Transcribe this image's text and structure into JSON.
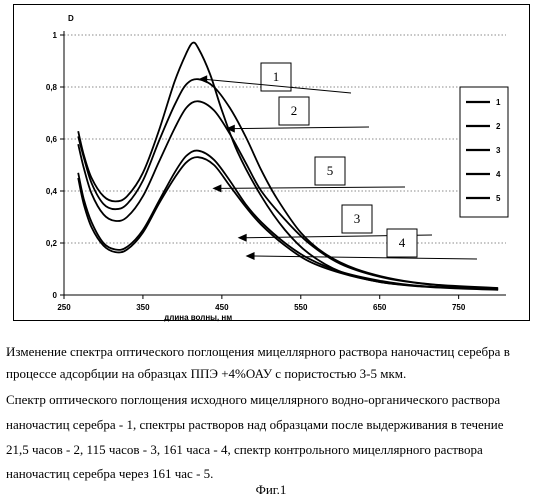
{
  "chart_data": {
    "type": "line",
    "ylabel": "D",
    "xlabel": "длина волны, нм",
    "xlim": [
      250,
      810
    ],
    "ylim": [
      0,
      1.0
    ],
    "x_ticks": [
      250,
      350,
      450,
      550,
      650,
      750
    ],
    "x_tick_labels": [
      "250",
      "350",
      "450",
      "550",
      "650",
      "750"
    ],
    "y_ticks": [
      0,
      0.2,
      0.4,
      0.6,
      0.8,
      1.0
    ],
    "y_tick_labels": [
      "0",
      "0,2",
      "0,4",
      "0,6",
      "0,8",
      "1"
    ],
    "grid": "horizontal dashed",
    "legend_position": "right",
    "series": [
      {
        "name": "1",
        "points": [
          [
            268,
            0.63
          ],
          [
            275,
            0.54
          ],
          [
            285,
            0.45
          ],
          [
            300,
            0.38
          ],
          [
            315,
            0.36
          ],
          [
            330,
            0.38
          ],
          [
            350,
            0.47
          ],
          [
            370,
            0.63
          ],
          [
            390,
            0.82
          ],
          [
            405,
            0.93
          ],
          [
            413,
            0.97
          ],
          [
            420,
            0.95
          ],
          [
            435,
            0.85
          ],
          [
            450,
            0.71
          ],
          [
            470,
            0.55
          ],
          [
            500,
            0.38
          ],
          [
            530,
            0.25
          ],
          [
            560,
            0.16
          ],
          [
            600,
            0.09
          ],
          [
            650,
            0.05
          ],
          [
            700,
            0.035
          ],
          [
            750,
            0.027
          ],
          [
            800,
            0.022
          ]
        ]
      },
      {
        "name": "2",
        "points": [
          [
            268,
            0.61
          ],
          [
            275,
            0.53
          ],
          [
            285,
            0.43
          ],
          [
            300,
            0.35
          ],
          [
            315,
            0.33
          ],
          [
            330,
            0.35
          ],
          [
            350,
            0.44
          ],
          [
            370,
            0.59
          ],
          [
            390,
            0.73
          ],
          [
            405,
            0.81
          ],
          [
            420,
            0.83
          ],
          [
            440,
            0.8
          ],
          [
            460,
            0.72
          ],
          [
            480,
            0.61
          ],
          [
            500,
            0.48
          ],
          [
            520,
            0.37
          ],
          [
            550,
            0.24
          ],
          [
            580,
            0.16
          ],
          [
            620,
            0.1
          ],
          [
            670,
            0.06
          ],
          [
            720,
            0.04
          ],
          [
            800,
            0.027
          ]
        ]
      },
      {
        "name": "3",
        "points": [
          [
            268,
            0.47
          ],
          [
            275,
            0.37
          ],
          [
            285,
            0.28
          ],
          [
            300,
            0.2
          ],
          [
            315,
            0.175
          ],
          [
            330,
            0.185
          ],
          [
            350,
            0.25
          ],
          [
            370,
            0.36
          ],
          [
            390,
            0.47
          ],
          [
            405,
            0.535
          ],
          [
            420,
            0.555
          ],
          [
            440,
            0.52
          ],
          [
            460,
            0.44
          ],
          [
            480,
            0.35
          ],
          [
            500,
            0.28
          ],
          [
            530,
            0.2
          ],
          [
            560,
            0.14
          ],
          [
            600,
            0.09
          ],
          [
            650,
            0.055
          ],
          [
            700,
            0.035
          ],
          [
            750,
            0.027
          ],
          [
            800,
            0.022
          ]
        ]
      },
      {
        "name": "4",
        "points": [
          [
            268,
            0.45
          ],
          [
            275,
            0.35
          ],
          [
            285,
            0.26
          ],
          [
            300,
            0.19
          ],
          [
            315,
            0.165
          ],
          [
            330,
            0.175
          ],
          [
            350,
            0.24
          ],
          [
            370,
            0.35
          ],
          [
            390,
            0.45
          ],
          [
            405,
            0.51
          ],
          [
            420,
            0.53
          ],
          [
            440,
            0.5
          ],
          [
            460,
            0.42
          ],
          [
            480,
            0.34
          ],
          [
            500,
            0.27
          ],
          [
            530,
            0.19
          ],
          [
            560,
            0.13
          ],
          [
            600,
            0.085
          ],
          [
            650,
            0.05
          ],
          [
            700,
            0.033
          ],
          [
            750,
            0.025
          ],
          [
            800,
            0.02
          ]
        ]
      },
      {
        "name": "5",
        "points": [
          [
            268,
            0.58
          ],
          [
            275,
            0.49
          ],
          [
            285,
            0.39
          ],
          [
            300,
            0.31
          ],
          [
            315,
            0.285
          ],
          [
            330,
            0.3
          ],
          [
            350,
            0.38
          ],
          [
            370,
            0.51
          ],
          [
            390,
            0.64
          ],
          [
            405,
            0.72
          ],
          [
            420,
            0.745
          ],
          [
            440,
            0.71
          ],
          [
            460,
            0.62
          ],
          [
            480,
            0.51
          ],
          [
            500,
            0.4
          ],
          [
            530,
            0.29
          ],
          [
            560,
            0.2
          ],
          [
            600,
            0.12
          ],
          [
            650,
            0.07
          ],
          [
            700,
            0.045
          ],
          [
            750,
            0.032
          ],
          [
            800,
            0.025
          ]
        ]
      }
    ],
    "annotations": [
      {
        "label": "1",
        "arrow_to": [
          420,
          0.83
        ]
      },
      {
        "label": "2",
        "arrow_to": [
          455,
          0.64
        ]
      },
      {
        "label": "5",
        "arrow_to": [
          438,
          0.41
        ]
      },
      {
        "label": "3",
        "arrow_to": [
          470,
          0.22
        ]
      },
      {
        "label": "4",
        "arrow_to": [
          480,
          0.15
        ]
      }
    ]
  },
  "caption": {
    "lines": [
      "Изменение спектра оптического поглощения мицеллярного раствора наночастиц серебра в",
      "процессе адсорбции на образцах ППЭ +4%ОАУ с  пористостью 3-5 мкм.",
      "Спектр оптического поглощения исходного мицеллярного водно-органического раствора",
      "наночастиц    серебра - 1, спектры растворов над образцами после выдерживания в течение",
      "21,5 часов - 2,  115 часов - 3,  161 часа - 4, спектр контрольного мицеллярного раствора",
      "наночастиц серебра через 161 час - 5."
    ],
    "figure_label": "Фиг.1"
  }
}
